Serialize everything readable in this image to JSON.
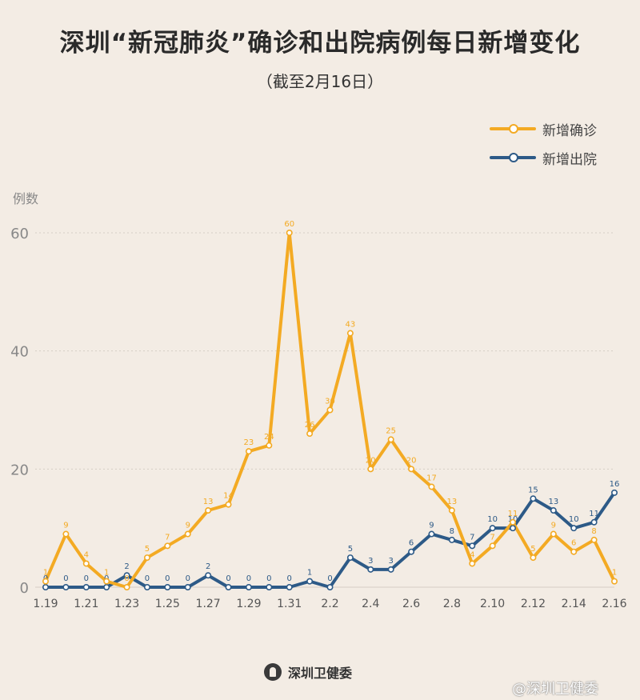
{
  "title": "深圳“新冠肺炎”确诊和出院病例每日新增变化",
  "subtitle": "（截至2月16日）",
  "footer": {
    "org": "深圳卫健委",
    "watermark": "@深圳卫健委"
  },
  "colors": {
    "confirmed": "#f3aa23",
    "discharged": "#2d5a87",
    "grid": "#d5cdc4",
    "tick": "#888888"
  },
  "chart_data": {
    "type": "line",
    "ylabel": "例数",
    "ylim": [
      0,
      60
    ],
    "yticks": [
      0,
      20,
      40,
      60
    ],
    "x": [
      "1.19",
      "1.20",
      "1.21",
      "1.22",
      "1.23",
      "1.24",
      "1.25",
      "1.26",
      "1.27",
      "1.28",
      "1.29",
      "1.30",
      "1.31",
      "2.1",
      "2.2",
      "2.3",
      "2.4",
      "2.5",
      "2.6",
      "2.7",
      "2.8",
      "2.9",
      "2.10",
      "2.11",
      "2.12",
      "2.13",
      "2.14",
      "2.15",
      "2.16"
    ],
    "xticks": [
      "1.19",
      "1.21",
      "1.23",
      "1.25",
      "1.27",
      "1.29",
      "1.31",
      "2.2",
      "2.4",
      "2.6",
      "2.8",
      "2.10",
      "2.12",
      "2.14",
      "2.16"
    ],
    "series": [
      {
        "name": "新增确诊",
        "values": [
          1,
          9,
          4,
          1,
          0,
          5,
          7,
          9,
          13,
          14,
          23,
          24,
          60,
          26,
          30,
          43,
          20,
          25,
          20,
          17,
          13,
          4,
          7,
          11,
          5,
          9,
          6,
          8,
          1
        ]
      },
      {
        "name": "新增出院",
        "values": [
          0,
          0,
          0,
          0,
          2,
          0,
          0,
          0,
          2,
          0,
          0,
          0,
          0,
          1,
          0,
          5,
          3,
          3,
          6,
          9,
          8,
          7,
          10,
          10,
          15,
          13,
          10,
          11,
          16
        ]
      }
    ],
    "grid": "horizontal",
    "legend": "top-right"
  }
}
